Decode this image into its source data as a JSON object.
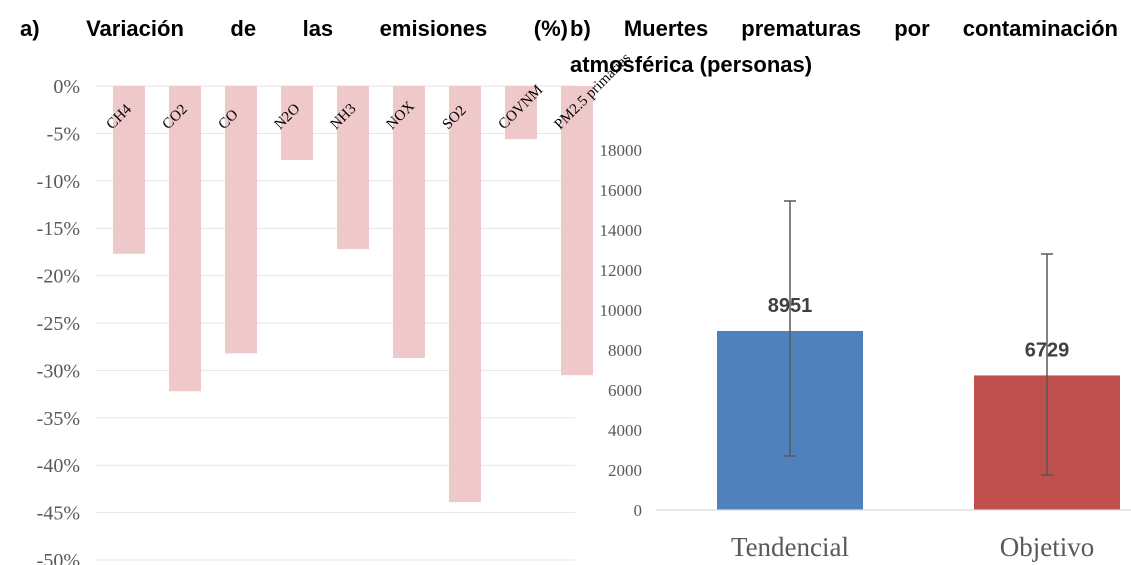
{
  "titles": {
    "a_line1": "a) Variación de las emisiones (%)",
    "b_line1": "b) Muertes prematuras por contaminación",
    "b_line2": "atmosférica (personas)"
  },
  "chart_data": [
    {
      "id": "a",
      "type": "bar",
      "title": "a) Variación de las emisiones (%)",
      "categories": [
        "CH4",
        "CO2",
        "CO",
        "N2O",
        "NH3",
        "NOX",
        "SO2",
        "COVNM",
        "PM2.5 primarias"
      ],
      "values": [
        -17.7,
        -32.2,
        -28.2,
        -7.8,
        -17.2,
        -28.7,
        -43.9,
        -5.6,
        -30.5
      ],
      "ylim": [
        -50,
        0
      ],
      "yticks": [
        0,
        -5,
        -10,
        -15,
        -20,
        -25,
        -30,
        -35,
        -40,
        -45,
        -50
      ],
      "ytick_labels": [
        "0%",
        "-5%",
        "-10%",
        "-15%",
        "-20%",
        "-25%",
        "-30%",
        "-35%",
        "-40%",
        "-45%",
        "-50%"
      ],
      "color": "#efc9c9",
      "grid": true
    },
    {
      "id": "b",
      "type": "bar",
      "title": "b) Muertes prematuras por contaminación atmosférica (personas)",
      "categories": [
        "Tendencial",
        "Objetivo"
      ],
      "values": [
        8951,
        6729
      ],
      "data_labels": [
        "8951",
        "6729"
      ],
      "error_low": [
        2700,
        1750
      ],
      "error_high": [
        15450,
        12800
      ],
      "ylim": [
        0,
        18000
      ],
      "yticks": [
        0,
        2000,
        4000,
        6000,
        8000,
        10000,
        12000,
        14000,
        16000,
        18000
      ],
      "ytick_labels": [
        "0",
        "2000",
        "4000",
        "6000",
        "8000",
        "10000",
        "12000",
        "14000",
        "16000",
        "18000"
      ],
      "colors": [
        "#4f81bd",
        "#c0504d"
      ],
      "grid": false
    }
  ]
}
